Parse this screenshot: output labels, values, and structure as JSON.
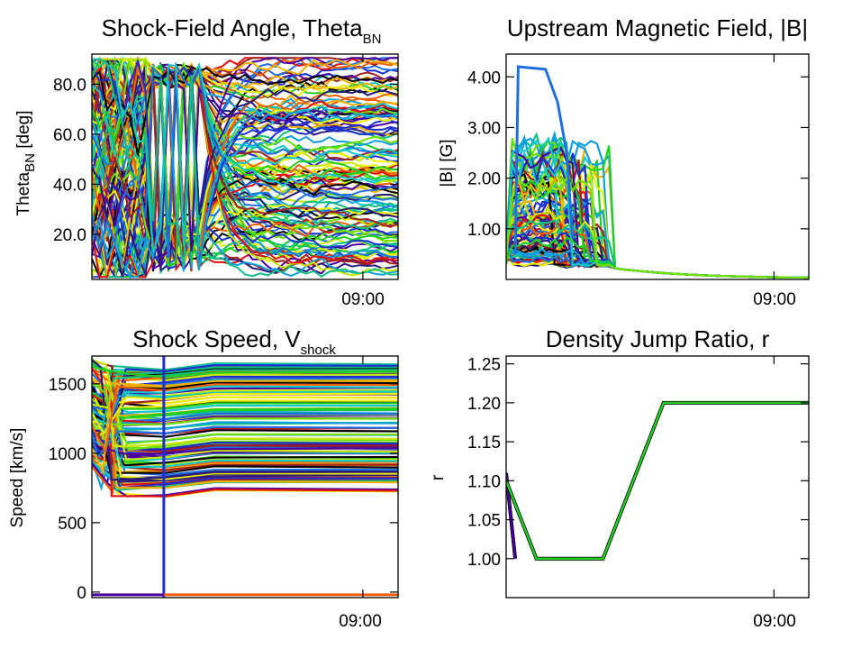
{
  "chart_data": [
    {
      "id": "theta",
      "type": "line",
      "title_main": "Shock-Field Angle, Theta",
      "title_sub": "BN",
      "ylabel_main": "Theta",
      "ylabel_sub": "BN",
      "ylabel_tail": " [deg]",
      "xtick": "09:00",
      "ylim": [
        2,
        92
      ],
      "yticks": [
        {
          "value": 20,
          "label": "20.0"
        },
        {
          "value": 40,
          "label": "40.0"
        },
        {
          "value": 60,
          "label": "60.0"
        },
        {
          "value": 80,
          "label": "80.0"
        }
      ],
      "grid": false,
      "legend": "none",
      "series_note": "many colored traces per field line"
    },
    {
      "id": "bfield",
      "type": "line",
      "title_main": "Upstream Magnetic Field, |B|",
      "title_sub": "",
      "ylabel_main": "|B| [G]",
      "ylabel_sub": "",
      "ylabel_tail": "",
      "xtick": "09:00",
      "ylim": [
        0,
        4.45
      ],
      "yticks": [
        {
          "value": 1,
          "label": "1.00"
        },
        {
          "value": 2,
          "label": "2.00"
        },
        {
          "value": 3,
          "label": "3.00"
        },
        {
          "value": 4,
          "label": "4.00"
        }
      ],
      "grid": false,
      "legend": "none"
    },
    {
      "id": "vshock",
      "type": "line",
      "title_main": "Shock Speed, V",
      "title_sub": "shock",
      "ylabel_main": "Speed [km/s]",
      "ylabel_sub": "",
      "ylabel_tail": "",
      "xtick": "09:00",
      "ylim": [
        -40,
        1700
      ],
      "yticks": [
        {
          "value": 0,
          "label": "0"
        },
        {
          "value": 500,
          "label": "500"
        },
        {
          "value": 1000,
          "label": "1000"
        },
        {
          "value": 1500,
          "label": "1500"
        }
      ],
      "grid": false,
      "legend": "none"
    },
    {
      "id": "ratio",
      "type": "line",
      "title_main": "Density Jump Ratio, r",
      "title_sub": "",
      "ylabel_main": "r",
      "ylabel_sub": "",
      "ylabel_tail": "",
      "xtick": "09:00",
      "ylim": [
        0.95,
        1.26
      ],
      "yticks": [
        {
          "value": 1.0,
          "label": "1.00"
        },
        {
          "value": 1.05,
          "label": "1.05"
        },
        {
          "value": 1.1,
          "label": "1.10"
        },
        {
          "value": 1.15,
          "label": "1.15"
        },
        {
          "value": 1.2,
          "label": "1.20"
        },
        {
          "value": 1.25,
          "label": "1.25"
        }
      ],
      "grid": false,
      "legend": "none",
      "series": [
        {
          "values": [
            [
              0.0,
              1.11
            ],
            [
              0.03,
              1.0
            ]
          ],
          "color": "#4a00a0"
        },
        {
          "values": [
            [
              0.0,
              1.1
            ],
            [
              0.1,
              1.0
            ],
            [
              0.32,
              1.0
            ],
            [
              0.52,
              1.2
            ],
            [
              1.0,
              1.2
            ]
          ],
          "color": "#22cc22"
        }
      ]
    }
  ],
  "colors": {
    "palette": [
      "#000000",
      "#2a1a7a",
      "#4a00a0",
      "#1f2fcf",
      "#1e6fe0",
      "#0f9fe0",
      "#10c8c8",
      "#10c080",
      "#20d020",
      "#70e000",
      "#c8e800",
      "#f0f000",
      "#f0b000",
      "#f06000",
      "#e01010",
      "#a02020"
    ]
  }
}
